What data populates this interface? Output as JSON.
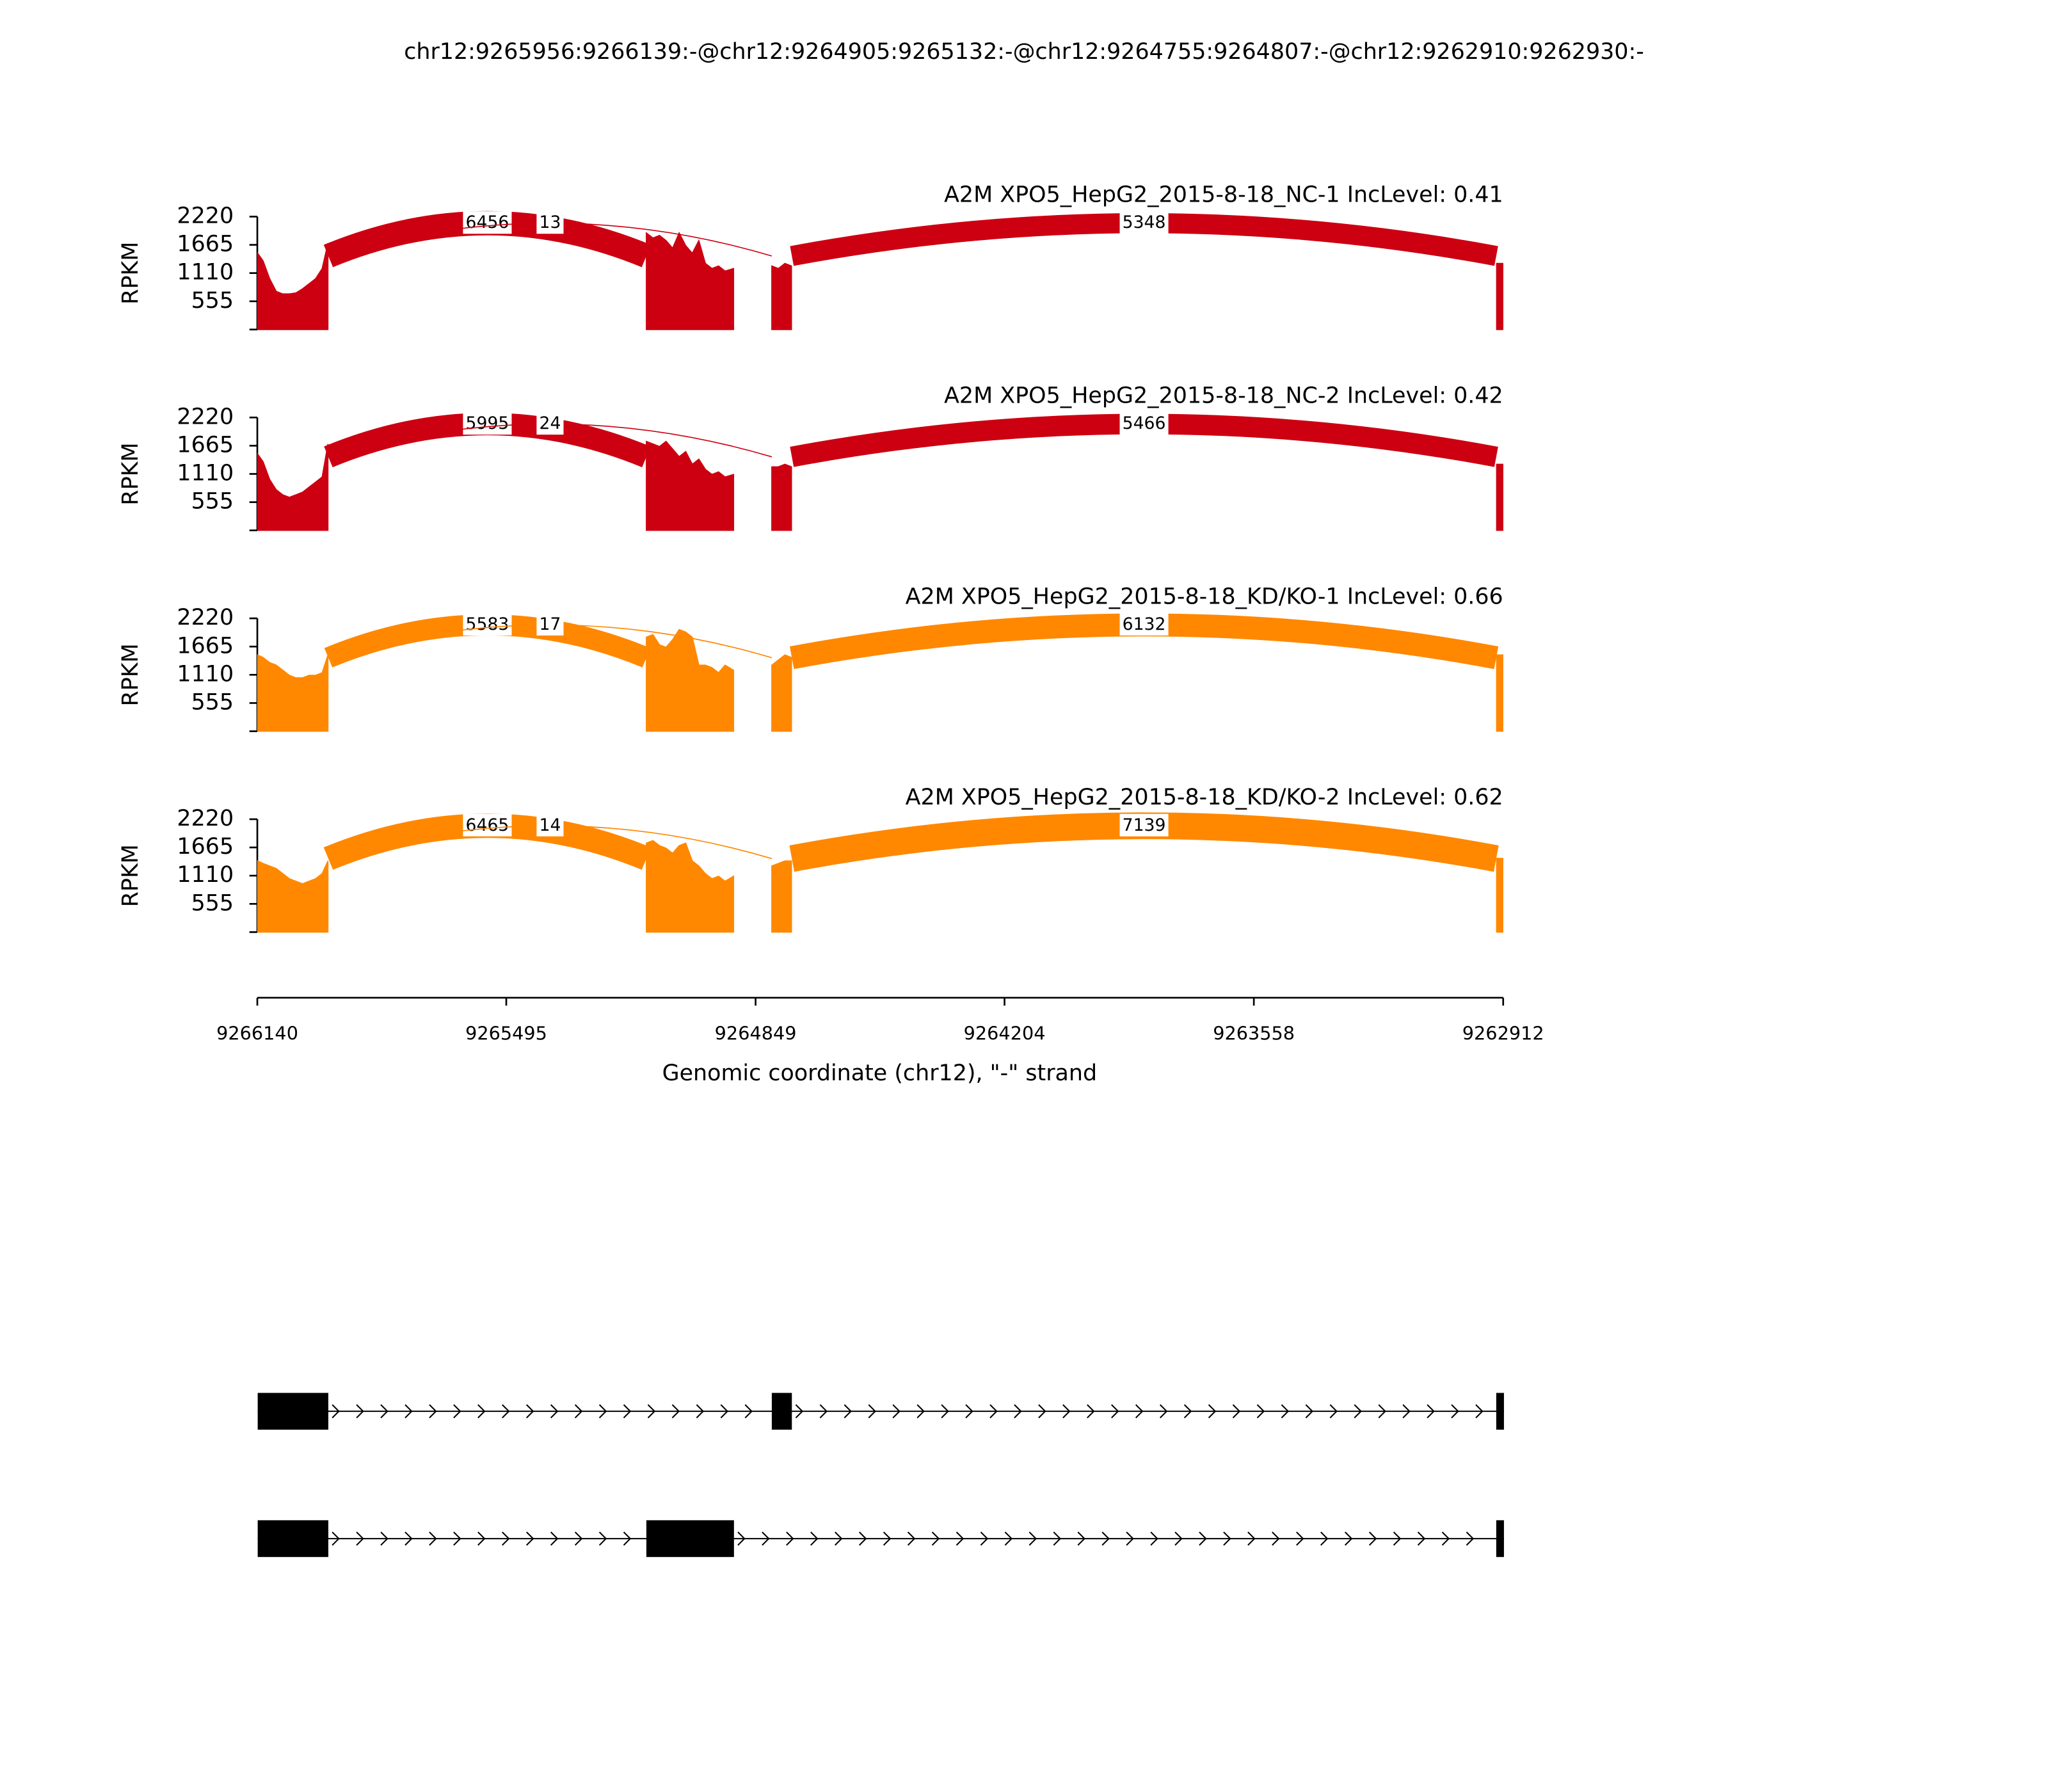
{
  "title": "chr12:9265956:9266139:-@chr12:9264905:9265132:-@chr12:9264755:9264807:-@chr12:9262910:9262930:-",
  "x_axis": {
    "label": "Genomic coordinate (chr12), \"-\" strand",
    "xlim": [
      9266140,
      9262912
    ],
    "xticks": [
      9266140,
      9265495,
      9264849,
      9264204,
      9263558,
      9262912
    ]
  },
  "chart_data": [
    {
      "type": "sashimi",
      "title": "A2M XPO5_HepG2_2015-8-18_NC-1 IncLevel: 0.41",
      "color": "#cc0011",
      "ylabel": "RPKM",
      "ylim": [
        0,
        2220
      ],
      "yticks": [
        555,
        1110,
        1665,
        2220
      ],
      "x": [
        9266139,
        9266125,
        9266108,
        9266091,
        9266074,
        9266057,
        9266040,
        9266023,
        9266006,
        9265989,
        9265972,
        9265957,
        9265500,
        9265132,
        9265115,
        9265098,
        9265081,
        9265064,
        9265047,
        9265030,
        9265013,
        9264996,
        9264979,
        9264962,
        9264945,
        9264928,
        9264906,
        9264860,
        9264807,
        9264790,
        9264773,
        9264756,
        9263800,
        9262929,
        9262913
      ],
      "values": [
        1500,
        1350,
        1000,
        750,
        700,
        700,
        720,
        800,
        900,
        1000,
        1200,
        1700,
        null,
        1900,
        1800,
        1850,
        1750,
        1600,
        1900,
        1650,
        1500,
        1750,
        1300,
        1200,
        1250,
        1150,
        1200,
        null,
        1250,
        1200,
        1300,
        1250,
        null,
        1300,
        1300
      ],
      "junctions": [
        {
          "from": 9265956,
          "to": 9265132,
          "count": 6456
        },
        {
          "from": 9265956,
          "to": 9264807,
          "count": 13
        },
        {
          "from": 9264755,
          "to": 9262930,
          "count": 5348
        }
      ]
    },
    {
      "type": "sashimi",
      "title": "A2M XPO5_HepG2_2015-8-18_NC-2 IncLevel: 0.42",
      "color": "#cc0011",
      "ylabel": "RPKM",
      "ylim": [
        0,
        2220
      ],
      "yticks": [
        555,
        1110,
        1665,
        2220
      ],
      "x": [
        9266139,
        9266125,
        9266108,
        9266091,
        9266074,
        9266057,
        9266040,
        9266023,
        9266006,
        9265989,
        9265972,
        9265957,
        9265500,
        9265132,
        9265115,
        9265098,
        9265081,
        9265064,
        9265047,
        9265030,
        9265013,
        9264996,
        9264979,
        9264962,
        9264945,
        9264928,
        9264906,
        9264860,
        9264807,
        9264790,
        9264773,
        9264756,
        9263800,
        9262929,
        9262913
      ],
      "values": [
        1500,
        1350,
        1000,
        800,
        700,
        650,
        700,
        750,
        850,
        950,
        1050,
        1700,
        null,
        1750,
        1700,
        1650,
        1750,
        1600,
        1450,
        1550,
        1300,
        1400,
        1200,
        1100,
        1150,
        1050,
        1100,
        null,
        1250,
        1250,
        1300,
        1250,
        null,
        1300,
        1300
      ],
      "junctions": [
        {
          "from": 9265956,
          "to": 9265132,
          "count": 5995
        },
        {
          "from": 9265956,
          "to": 9264807,
          "count": 24
        },
        {
          "from": 9264755,
          "to": 9262930,
          "count": 5466
        }
      ]
    },
    {
      "type": "sashimi",
      "title": "A2M XPO5_HepG2_2015-8-18_KD/KO-1 IncLevel: 0.66",
      "color": "#ff8800",
      "ylabel": "RPKM",
      "ylim": [
        0,
        2220
      ],
      "yticks": [
        555,
        1110,
        1665,
        2220
      ],
      "x": [
        9266139,
        9266125,
        9266108,
        9266091,
        9266074,
        9266057,
        9266040,
        9266023,
        9266006,
        9265989,
        9265972,
        9265957,
        9265500,
        9265132,
        9265115,
        9265098,
        9265081,
        9265064,
        9265047,
        9265030,
        9265013,
        9264996,
        9264979,
        9264962,
        9264945,
        9264928,
        9264906,
        9264860,
        9264807,
        9264790,
        9264773,
        9264756,
        9263800,
        9262929,
        9262913
      ],
      "values": [
        1500,
        1450,
        1350,
        1300,
        1200,
        1100,
        1050,
        1050,
        1100,
        1100,
        1150,
        1500,
        null,
        1850,
        1900,
        1700,
        1650,
        1800,
        2000,
        1950,
        1850,
        1300,
        1300,
        1250,
        1150,
        1300,
        1200,
        null,
        1300,
        1400,
        1500,
        1450,
        null,
        1500,
        1500
      ],
      "junctions": [
        {
          "from": 9265956,
          "to": 9265132,
          "count": 5583
        },
        {
          "from": 9265956,
          "to": 9264807,
          "count": 17
        },
        {
          "from": 9264755,
          "to": 9262930,
          "count": 6132
        }
      ]
    },
    {
      "type": "sashimi",
      "title": "A2M XPO5_HepG2_2015-8-18_KD/KO-2 IncLevel: 0.62",
      "color": "#ff8800",
      "ylabel": "RPKM",
      "ylim": [
        0,
        2220
      ],
      "yticks": [
        555,
        1110,
        1665,
        2220
      ],
      "x": [
        9266139,
        9266125,
        9266108,
        9266091,
        9266074,
        9266057,
        9266040,
        9266023,
        9266006,
        9265989,
        9265972,
        9265957,
        9265500,
        9265132,
        9265115,
        9265098,
        9265081,
        9265064,
        9265047,
        9265030,
        9265013,
        9264996,
        9264979,
        9264962,
        9264945,
        9264928,
        9264906,
        9264860,
        9264807,
        9264790,
        9264773,
        9264756,
        9263800,
        9262929,
        9262913
      ],
      "values": [
        1400,
        1350,
        1300,
        1250,
        1150,
        1050,
        1000,
        950,
        1000,
        1050,
        1150,
        1400,
        null,
        1750,
        1800,
        1700,
        1650,
        1550,
        1700,
        1750,
        1400,
        1300,
        1150,
        1050,
        1100,
        1000,
        1100,
        null,
        1300,
        1350,
        1400,
        1400,
        null,
        1450,
        1450
      ],
      "junctions": [
        {
          "from": 9265956,
          "to": 9265132,
          "count": 6465
        },
        {
          "from": 9265956,
          "to": 9264807,
          "count": 14
        },
        {
          "from": 9264755,
          "to": 9262930,
          "count": 7139
        }
      ]
    }
  ],
  "gene_models": [
    {
      "exons": [
        [
          9266139,
          9265956
        ],
        [
          9264807,
          9264755
        ],
        [
          9262930,
          9262910
        ]
      ]
    },
    {
      "exons": [
        [
          9266139,
          9265956
        ],
        [
          9265132,
          9264905
        ],
        [
          9262930,
          9262910
        ]
      ]
    }
  ]
}
